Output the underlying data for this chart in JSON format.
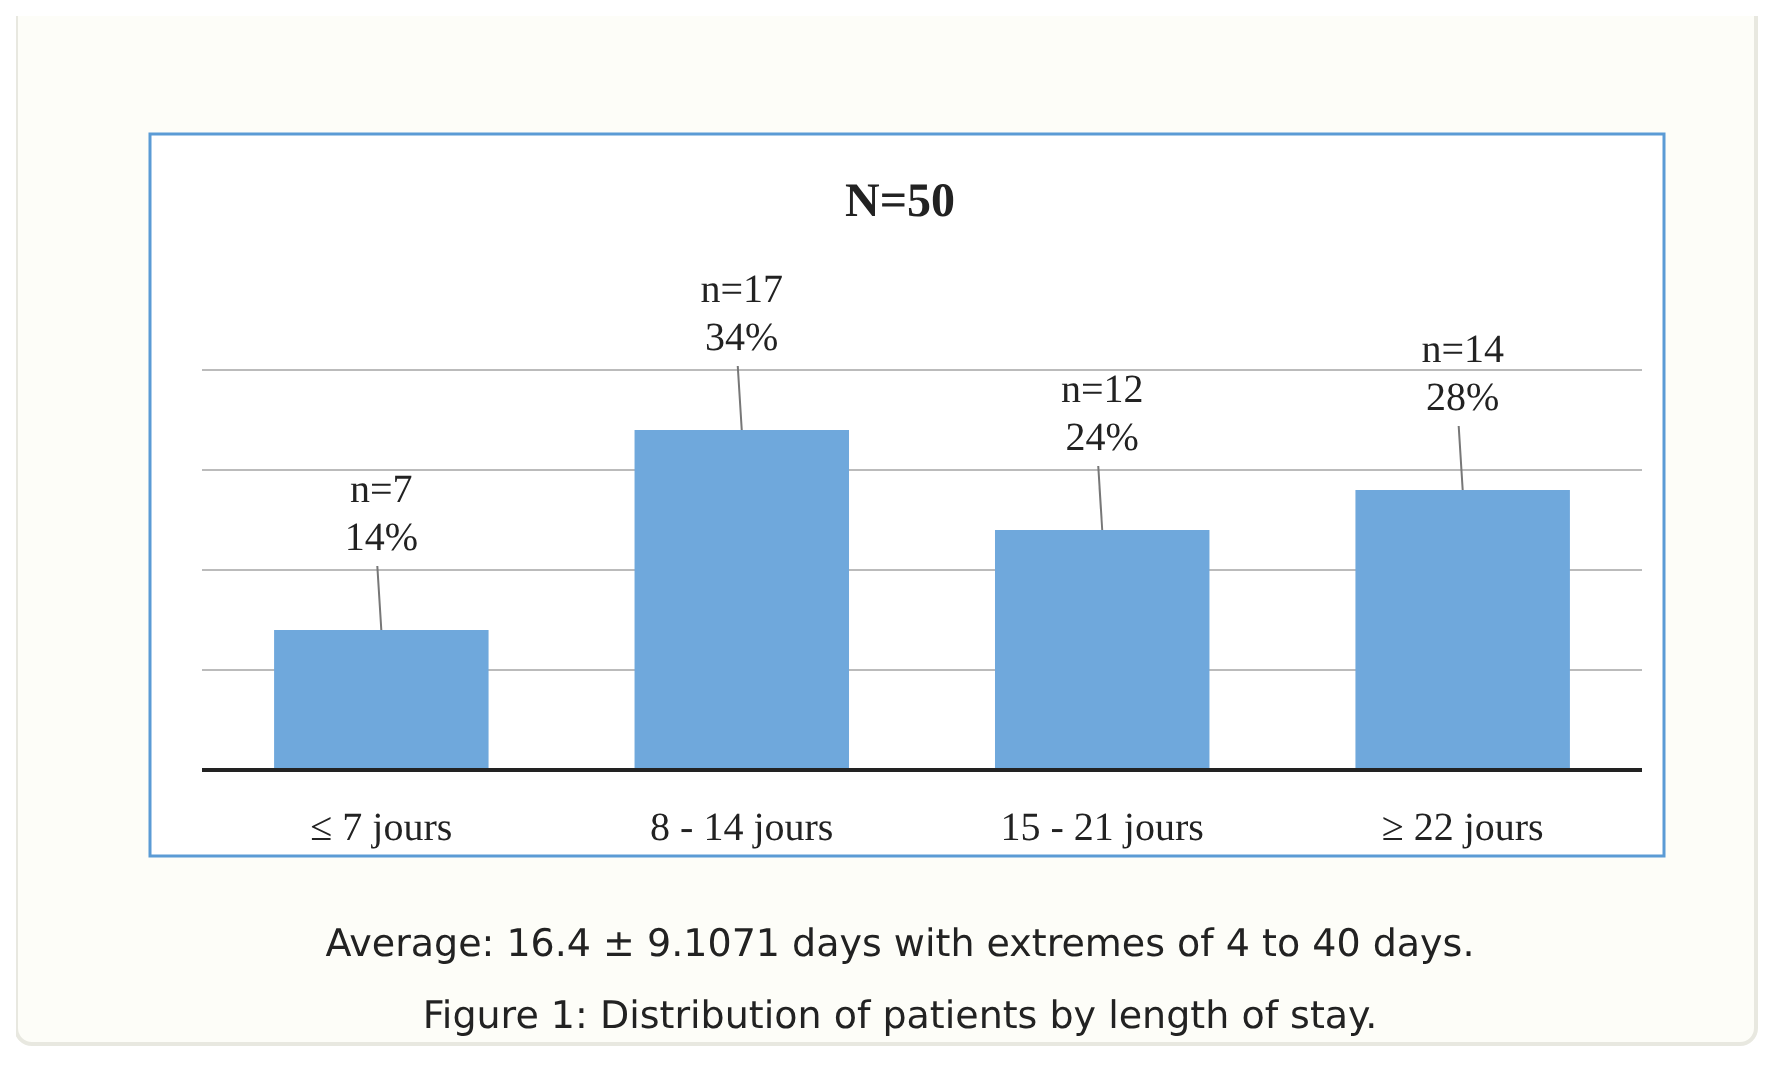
{
  "chart_data": {
    "type": "bar",
    "title": "N=50",
    "categories": [
      "≤ 7 jours",
      "8 - 14 jours",
      "15 - 21 jours",
      "≥ 22 jours"
    ],
    "values": [
      14,
      34,
      24,
      28
    ],
    "value_labels": [
      "n=7\n14%",
      "n=17\n34%",
      "n=12\n24%",
      "n=14\n28%"
    ],
    "color": "#6fa8dc",
    "ylim": [
      0,
      40
    ],
    "yticks": [
      {
        "value": 0,
        "label": null
      },
      {
        "value": 10,
        "label": null
      },
      {
        "value": 20,
        "label": null
      },
      {
        "value": 30,
        "label": null
      },
      {
        "value": 40,
        "label": null
      }
    ],
    "tick_labels": "x",
    "grid": "y",
    "annotations": [
      "Average: 16.4 ± 9.1071 days with extremes of 4 to 40 days.",
      "Figure 1: Distribution of patients by length of stay."
    ]
  }
}
